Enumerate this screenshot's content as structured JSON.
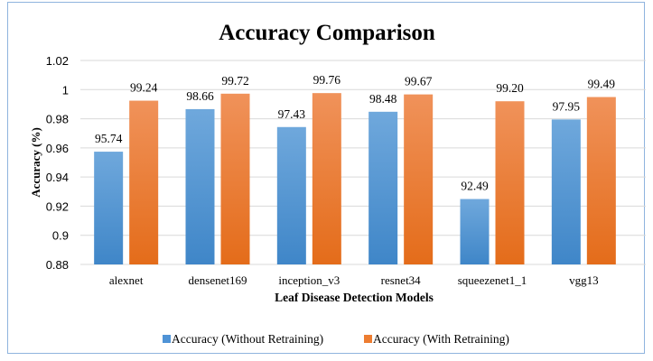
{
  "chart_data": {
    "type": "bar",
    "title": "Accuracy Comparison",
    "xlabel": "Leaf Disease Detection Models",
    "ylabel": "Accuracy (%)",
    "ylim": [
      0.88,
      1.02
    ],
    "yticks": [
      "0.88",
      "0.9",
      "0.92",
      "0.94",
      "0.96",
      "0.98",
      "1",
      "1.02"
    ],
    "ytick_values": [
      0.88,
      0.9,
      0.92,
      0.94,
      0.96,
      0.98,
      1.0,
      1.02
    ],
    "grid": true,
    "legend_position": "bottom",
    "categories": [
      "alexnet",
      "densenet169",
      "inception_v3",
      "resnet34",
      "squeezenet1_1",
      "vgg13"
    ],
    "series": [
      {
        "name": "Accuracy (Without Retraining)",
        "color": "#4f93d6",
        "values": [
          0.9574,
          0.9866,
          0.9743,
          0.9848,
          0.9249,
          0.9795
        ],
        "labels": [
          "95.74",
          "98.66",
          "97.43",
          "98.48",
          "92.49",
          "97.95"
        ]
      },
      {
        "name": "Accuracy (With Retraining)",
        "color": "#ed7d31",
        "values": [
          0.9924,
          0.9972,
          0.9976,
          0.9967,
          0.992,
          0.9949
        ],
        "labels": [
          "99.24",
          "99.72",
          "99.76",
          "99.67",
          "99.20",
          "99.49"
        ]
      }
    ]
  }
}
